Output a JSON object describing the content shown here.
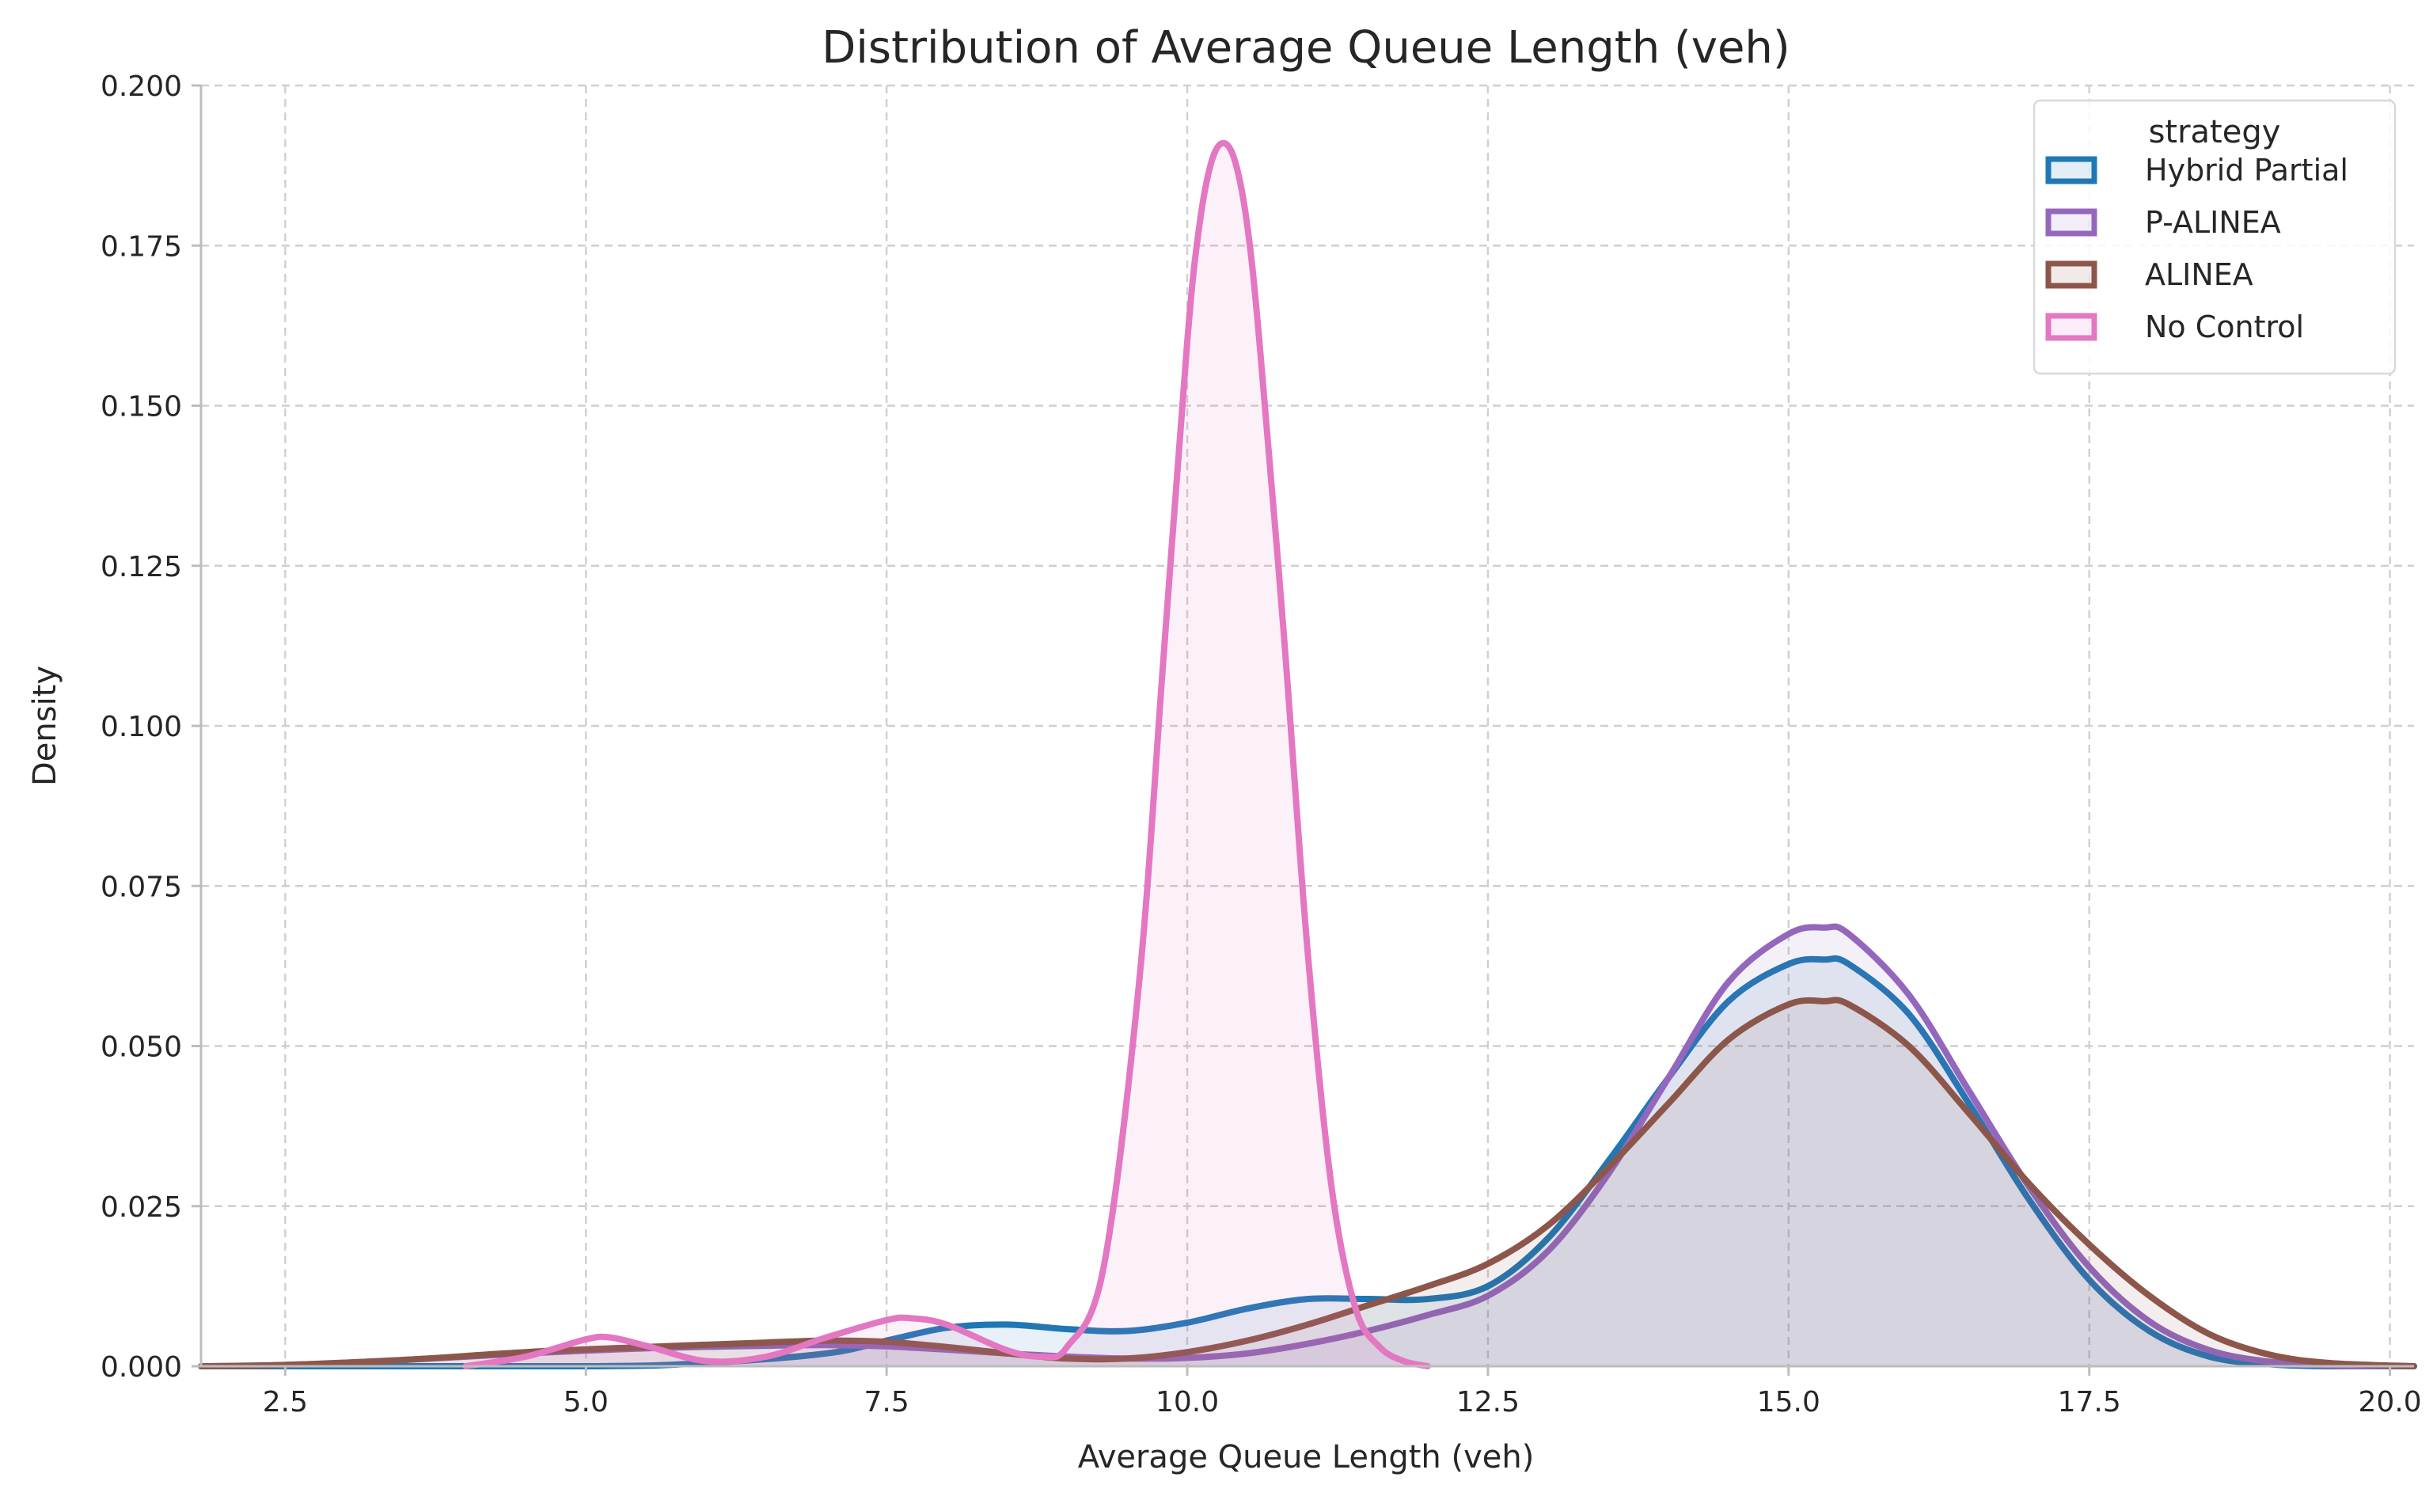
{
  "chart_data": {
    "type": "area",
    "title": "Distribution of Average Queue Length (veh)",
    "xlabel": "Average Queue Length (veh)",
    "ylabel": "Density",
    "xlim": [
      1.8,
      20.2
    ],
    "ylim": [
      0,
      0.2
    ],
    "xticks": [
      2.5,
      5.0,
      7.5,
      10.0,
      12.5,
      15.0,
      17.5,
      20.0
    ],
    "xtick_labels": [
      "2.5",
      "5.0",
      "7.5",
      "10.0",
      "12.5",
      "15.0",
      "17.5",
      "20.0"
    ],
    "yticks": [
      0,
      0.025,
      0.05,
      0.075,
      0.1,
      0.125,
      0.15,
      0.175,
      0.2
    ],
    "ytick_labels": [
      "0.000",
      "0.025",
      "0.050",
      "0.075",
      "0.100",
      "0.125",
      "0.150",
      "0.175",
      "0.200"
    ],
    "grid": true,
    "legend": {
      "title": "strategy",
      "placement": "top-right"
    },
    "series": [
      {
        "name": "Hybrid Partial",
        "color": "#1f77b4",
        "x": [
          1.8,
          5.0,
          6.0,
          7.0,
          7.5,
          8.0,
          8.5,
          9.0,
          9.5,
          10.0,
          10.5,
          11.0,
          11.5,
          12.0,
          12.5,
          13.0,
          13.5,
          14.0,
          14.5,
          15.0,
          15.3,
          15.5,
          16.0,
          16.5,
          17.0,
          17.5,
          18.0,
          18.5,
          19.0,
          19.5,
          20.2
        ],
        "y": [
          0,
          0,
          0.0005,
          0.002,
          0.004,
          0.006,
          0.0065,
          0.0058,
          0.0055,
          0.0068,
          0.009,
          0.0105,
          0.0105,
          0.0105,
          0.0125,
          0.02,
          0.032,
          0.045,
          0.057,
          0.0628,
          0.0635,
          0.0628,
          0.055,
          0.041,
          0.026,
          0.0135,
          0.0055,
          0.0015,
          0.0003,
          0,
          0
        ]
      },
      {
        "name": "P-ALINEA",
        "color": "#9467bd",
        "x": [
          1.8,
          2.5,
          3.5,
          4.5,
          5.5,
          6.5,
          7.0,
          7.5,
          8.0,
          8.5,
          9.0,
          9.5,
          10.0,
          10.5,
          11.0,
          11.5,
          12.0,
          12.5,
          13.0,
          13.5,
          14.0,
          14.5,
          15.0,
          15.3,
          15.5,
          16.0,
          16.5,
          17.0,
          17.5,
          18.0,
          18.5,
          19.0,
          19.5,
          20.2
        ],
        "y": [
          0,
          0.0002,
          0.001,
          0.002,
          0.0028,
          0.0032,
          0.0033,
          0.0031,
          0.0026,
          0.002,
          0.0015,
          0.0012,
          0.0013,
          0.002,
          0.0035,
          0.0055,
          0.008,
          0.011,
          0.018,
          0.03,
          0.045,
          0.06,
          0.0675,
          0.0685,
          0.0675,
          0.058,
          0.043,
          0.028,
          0.0155,
          0.007,
          0.0025,
          0.0007,
          0.0001,
          0
        ]
      },
      {
        "name": "ALINEA",
        "color": "#8c564b",
        "x": [
          1.8,
          2.5,
          3.5,
          4.5,
          5.5,
          6.5,
          7.0,
          7.5,
          8.0,
          8.5,
          9.0,
          9.5,
          10.0,
          10.5,
          11.0,
          11.5,
          12.0,
          12.5,
          13.0,
          13.5,
          14.0,
          14.5,
          15.0,
          15.3,
          15.5,
          16.0,
          16.5,
          17.0,
          17.5,
          18.0,
          18.5,
          19.0,
          19.5,
          20.2
        ],
        "y": [
          0,
          0.0002,
          0.001,
          0.0022,
          0.003,
          0.0037,
          0.004,
          0.0038,
          0.003,
          0.002,
          0.0012,
          0.0012,
          0.0022,
          0.004,
          0.0065,
          0.0095,
          0.0125,
          0.016,
          0.022,
          0.031,
          0.041,
          0.051,
          0.0565,
          0.057,
          0.0565,
          0.05,
          0.0395,
          0.0285,
          0.019,
          0.011,
          0.005,
          0.0018,
          0.0005,
          0
        ]
      },
      {
        "name": "No Control",
        "color": "#e377c2",
        "x": [
          4.0,
          4.5,
          5.0,
          5.2,
          5.5,
          6.0,
          6.5,
          7.0,
          7.5,
          7.7,
          8.0,
          8.5,
          8.8,
          9.0,
          9.3,
          9.6,
          9.8,
          10.0,
          10.1,
          10.2,
          10.3,
          10.4,
          10.5,
          10.6,
          10.8,
          11.0,
          11.2,
          11.4,
          11.6,
          11.8,
          12.0
        ],
        "y": [
          0,
          0.0015,
          0.0042,
          0.0045,
          0.0032,
          0.0008,
          0.0015,
          0.0045,
          0.0072,
          0.0075,
          0.0065,
          0.0025,
          0.0015,
          0.003,
          0.015,
          0.06,
          0.11,
          0.16,
          0.178,
          0.188,
          0.191,
          0.188,
          0.178,
          0.16,
          0.115,
          0.065,
          0.028,
          0.009,
          0.003,
          0.0008,
          0
        ]
      }
    ]
  }
}
